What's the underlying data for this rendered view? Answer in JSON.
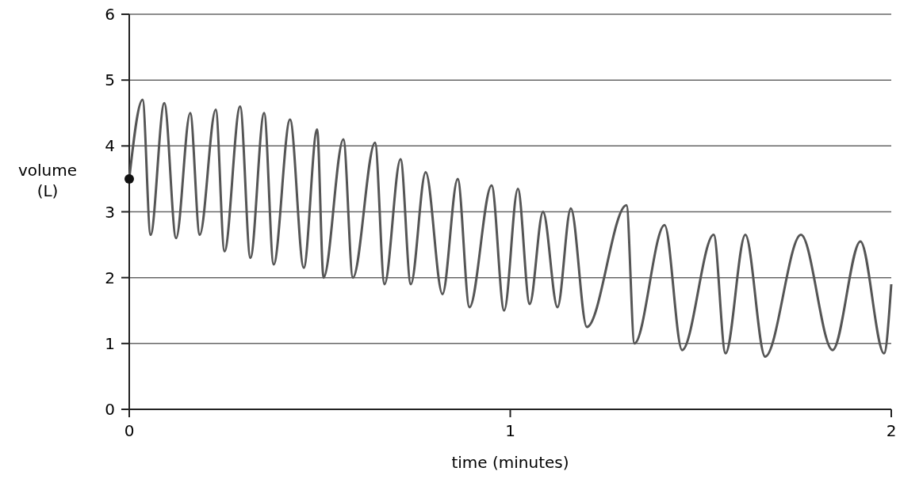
{
  "chart_data": {
    "type": "line",
    "xlabel": "time (minutes)",
    "ylabel": "volume (L)",
    "xlim": [
      0,
      2
    ],
    "xticks": [
      0,
      1,
      2
    ],
    "ylim": [
      0,
      6
    ],
    "yticks": [
      0,
      1,
      2,
      3,
      4,
      5,
      6
    ],
    "grid": "y",
    "series": [
      {
        "color": "#555555",
        "marker": "none",
        "x": [
          0,
          0.035,
          0.056,
          0.092,
          0.123,
          0.16,
          0.185,
          0.227,
          0.25,
          0.291,
          0.318,
          0.354,
          0.379,
          0.422,
          0.458,
          0.493,
          0.51,
          0.562,
          0.587,
          0.645,
          0.67,
          0.712,
          0.739,
          0.778,
          0.822,
          0.862,
          0.893,
          0.951,
          0.984,
          1.02,
          1.051,
          1.086,
          1.124,
          1.159,
          1.201,
          1.305,
          1.326,
          1.405,
          1.451,
          1.534,
          1.565,
          1.617,
          1.669,
          1.763,
          1.846,
          1.919,
          1.981,
          2
        ],
        "values": [
          3.5,
          4.7,
          2.65,
          4.65,
          2.6,
          4.5,
          2.65,
          4.55,
          2.4,
          4.6,
          2.3,
          4.5,
          2.2,
          4.4,
          2.15,
          4.25,
          2.0,
          4.1,
          2.0,
          4.05,
          1.9,
          3.8,
          1.9,
          3.6,
          1.75,
          3.5,
          1.55,
          3.4,
          1.5,
          3.35,
          1.6,
          3.0,
          1.55,
          3.05,
          1.25,
          3.1,
          1.0,
          2.8,
          0.9,
          2.65,
          0.85,
          2.65,
          0.8,
          2.65,
          0.9,
          2.55,
          0.85,
          1.9
        ]
      },
      {
        "type": "scatter",
        "color": "#111111",
        "marker": "circle",
        "x": [
          0
        ],
        "values": [
          3.5
        ]
      }
    ]
  }
}
